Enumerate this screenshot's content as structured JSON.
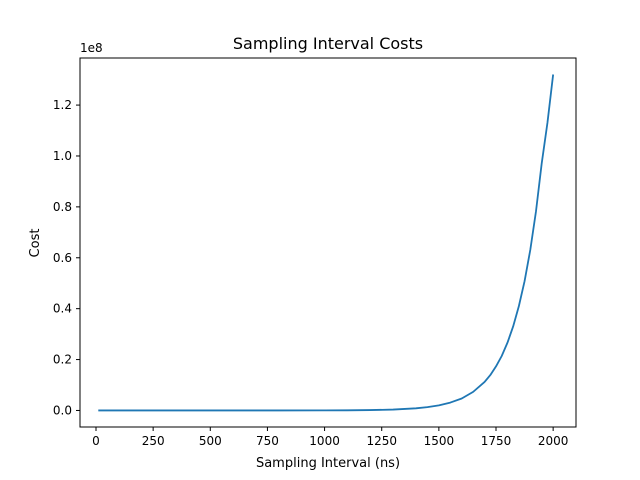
{
  "chart_data": {
    "type": "line",
    "title": "Sampling Interval Costs",
    "xlabel": "Sampling Interval (ns)",
    "ylabel": "Cost",
    "y_offset_text": "1e8",
    "xlim": [
      -70,
      2100
    ],
    "ylim": [
      -6500000,
      138500000
    ],
    "x_ticks": [
      0,
      250,
      500,
      750,
      1000,
      1250,
      1500,
      1750,
      2000
    ],
    "x_tick_labels": [
      "0",
      "250",
      "500",
      "750",
      "1000",
      "1250",
      "1500",
      "1750",
      "2000"
    ],
    "y_ticks": [
      0,
      20000000,
      40000000,
      60000000,
      80000000,
      100000000,
      120000000
    ],
    "y_tick_labels": [
      "0.0",
      "0.2",
      "0.4",
      "0.6",
      "0.8",
      "1.0",
      "1.2"
    ],
    "grid": false,
    "series": [
      {
        "color": "#1f77b4",
        "x": [
          10,
          200,
          400,
          600,
          800,
          1000,
          1100,
          1200,
          1300,
          1400,
          1450,
          1500,
          1550,
          1600,
          1650,
          1700,
          1725,
          1750,
          1775,
          1800,
          1825,
          1850,
          1875,
          1900,
          1925,
          1950,
          1975,
          2000
        ],
        "y": [
          0,
          0,
          0,
          0,
          0,
          20000,
          60000,
          150000,
          350000,
          850000,
          1300000,
          2000000,
          3100000,
          4700000,
          7300000,
          11200000,
          13900000,
          17300000,
          21400000,
          26600000,
          33000000,
          41000000,
          50800000,
          63100000,
          78300000,
          97100000,
          113000000,
          132000000
        ]
      }
    ]
  }
}
